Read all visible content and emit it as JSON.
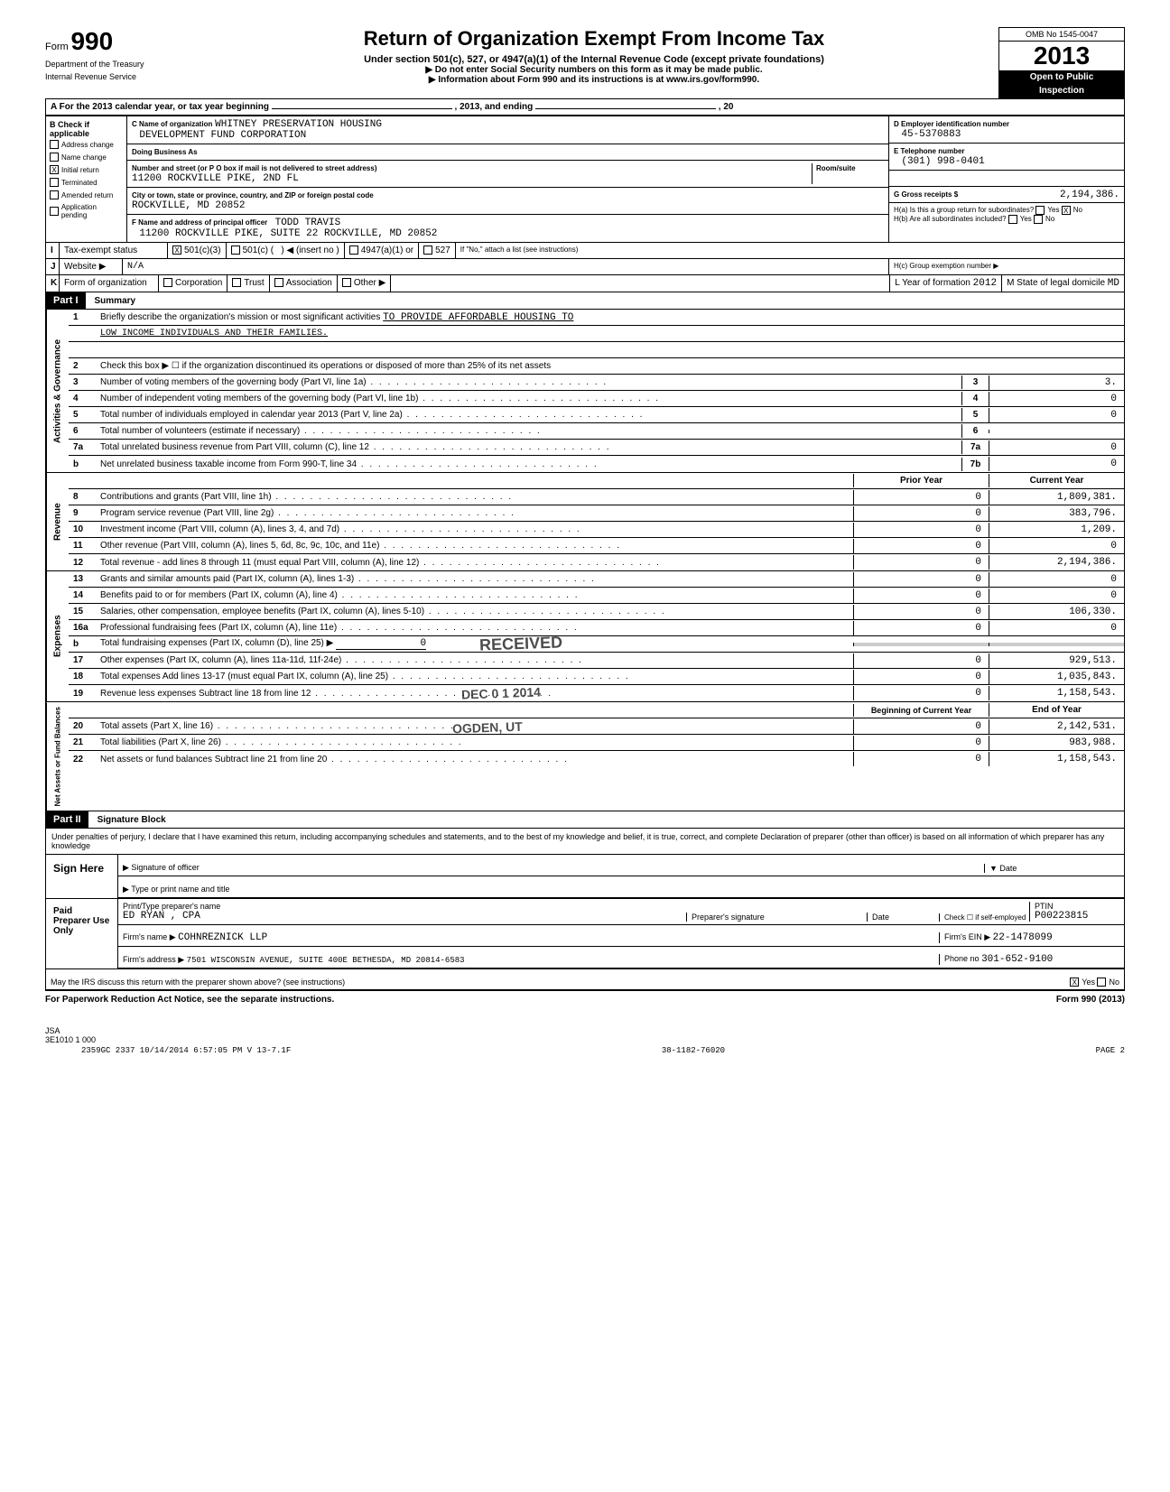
{
  "header": {
    "form_label": "Form",
    "form_number": "990",
    "dept": "Department of the Treasury",
    "irs": "Internal Revenue Service",
    "title": "Return of Organization Exempt From Income Tax",
    "subtitle": "Under section 501(c), 527, or 4947(a)(1) of the Internal Revenue Code (except private foundations)",
    "note1": "▶ Do not enter Social Security numbers on this form as it may be made public.",
    "note2": "▶ Information about Form 990 and its instructions is at www.irs.gov/form990.",
    "omb": "OMB No 1545-0047",
    "year_prefix": "20",
    "year": "13",
    "open": "Open to Public",
    "inspection": "Inspection"
  },
  "row_a": {
    "text_pre": "A For the 2013 calendar year, or tax year beginning",
    "text_mid": ", 2013, and ending",
    "text_end": ", 20"
  },
  "section_b": {
    "label": "B Check if applicable",
    "opts": [
      "Address change",
      "Name change",
      "Initial return",
      "Terminated",
      "Amended return",
      "Application pending"
    ],
    "checked": [
      false,
      false,
      true,
      false,
      false,
      false
    ]
  },
  "section_c": {
    "name_label": "C Name of organization",
    "name1": "WHITNEY PRESERVATION HOUSING",
    "name2": "DEVELOPMENT FUND CORPORATION",
    "dba_label": "Doing Business As",
    "addr_label": "Number and street (or P O box if mail is not delivered to street address)",
    "room_label": "Room/suite",
    "addr": "11200 ROCKVILLE PIKE, 2ND FL",
    "city_label": "City or town, state or province, country, and ZIP or foreign postal code",
    "city": "ROCKVILLE, MD 20852",
    "f_label": "F Name and address of principal officer",
    "f_name": "TODD TRAVIS",
    "f_addr": "11200 ROCKVILLE PIKE, SUITE 22 ROCKVILLE, MD 20852"
  },
  "section_d": {
    "label": "D  Employer identification number",
    "ein": "45-5370883"
  },
  "section_e": {
    "label": "E  Telephone number",
    "phone": "(301) 998-0401"
  },
  "section_g": {
    "label": "G  Gross receipts $",
    "amount": "2,194,386."
  },
  "section_h": {
    "ha_label": "H(a) Is this a group return for subordinates?",
    "hb_label": "H(b) Are all subordinates included?",
    "hc_label": "H(c) Group exemption number ▶",
    "yes": "Yes",
    "no": "No",
    "note": "If \"No,\" attach a list (see instructions)"
  },
  "row_i": {
    "label": "I",
    "text": "Tax-exempt status",
    "opts": [
      "501(c)(3)",
      "501(c) (",
      "(insert no )",
      "4947(a)(1) or",
      "527"
    ],
    "checked_501c3": "X"
  },
  "row_j": {
    "label": "J",
    "text": "Website ▶",
    "val": "N/A"
  },
  "row_k": {
    "label": "K",
    "text": "Form of organization",
    "opts": [
      "Corporation",
      "Trust",
      "Association",
      "Other ▶"
    ],
    "l_label": "L Year of formation",
    "l_val": "2012",
    "m_label": "M State of legal domicile",
    "m_val": "MD"
  },
  "part1": {
    "label": "Part I",
    "title": "Summary"
  },
  "summary": {
    "side_labels": [
      "Activities & Governance",
      "Revenue",
      "Expenses",
      "Net Assets or Fund Balances"
    ],
    "line1_text": "Briefly describe the organization's mission or most significant activities",
    "line1_val": "TO PROVIDE AFFORDABLE HOUSING TO",
    "line1_val2": "LOW INCOME INDIVIDUALS AND THEIR FAMILIES.",
    "line2_text": "Check this box ▶ ☐ if the organization discontinued its operations or disposed of more than 25% of its net assets",
    "rows_gov": [
      {
        "n": "3",
        "text": "Number of voting members of the governing body (Part VI, line 1a)",
        "box": "3",
        "val": "3."
      },
      {
        "n": "4",
        "text": "Number of independent voting members of the governing body (Part VI, line 1b)",
        "box": "4",
        "val": "0"
      },
      {
        "n": "5",
        "text": "Total number of individuals employed in calendar year 2013 (Part V, line 2a)",
        "box": "5",
        "val": "0"
      },
      {
        "n": "6",
        "text": "Total number of volunteers (estimate if necessary)",
        "box": "6",
        "val": ""
      },
      {
        "n": "7a",
        "text": "Total unrelated business revenue from Part VIII, column (C), line 12",
        "box": "7a",
        "val": "0"
      },
      {
        "n": "b",
        "text": "Net unrelated business taxable income from Form 990-T, line 34",
        "box": "7b",
        "val": "0"
      }
    ],
    "header_prior": "Prior Year",
    "header_current": "Current Year",
    "rows_rev": [
      {
        "n": "8",
        "text": "Contributions and grants (Part VIII, line 1h)",
        "prior": "0",
        "current": "1,809,381."
      },
      {
        "n": "9",
        "text": "Program service revenue (Part VIII, line 2g)",
        "prior": "0",
        "current": "383,796."
      },
      {
        "n": "10",
        "text": "Investment income (Part VIII, column (A), lines 3, 4, and 7d)",
        "prior": "0",
        "current": "1,209."
      },
      {
        "n": "11",
        "text": "Other revenue (Part VIII, column (A), lines 5, 6d, 8c, 9c, 10c, and 11e)",
        "prior": "0",
        "current": "0"
      },
      {
        "n": "12",
        "text": "Total revenue - add lines 8 through 11 (must equal Part VIII, column (A), line 12)",
        "prior": "0",
        "current": "2,194,386."
      }
    ],
    "rows_exp": [
      {
        "n": "13",
        "text": "Grants and similar amounts paid (Part IX, column (A), lines 1-3)",
        "prior": "0",
        "current": "0"
      },
      {
        "n": "14",
        "text": "Benefits paid to or for members (Part IX, column (A), line 4)",
        "prior": "0",
        "current": "0"
      },
      {
        "n": "15",
        "text": "Salaries, other compensation, employee benefits (Part IX, column (A), lines 5-10)",
        "prior": "0",
        "current": "106,330."
      },
      {
        "n": "16a",
        "text": "Professional fundraising fees (Part IX, column (A), line 11e)",
        "prior": "0",
        "current": "0"
      },
      {
        "n": "b",
        "text": "Total fundraising expenses (Part IX, column (D), line 25) ▶",
        "prior": "",
        "current": "",
        "val0": "0"
      },
      {
        "n": "17",
        "text": "Other expenses (Part IX, column (A), lines 11a-11d, 11f-24e)",
        "prior": "0",
        "current": "929,513."
      },
      {
        "n": "18",
        "text": "Total expenses  Add lines 13-17 (must equal Part IX, column (A), line 25)",
        "prior": "0",
        "current": "1,035,843."
      },
      {
        "n": "19",
        "text": "Revenue less expenses  Subtract line 18 from line 12",
        "prior": "0",
        "current": "1,158,543."
      }
    ],
    "header_begin": "Beginning of Current Year",
    "header_end": "End of Year",
    "rows_net": [
      {
        "n": "20",
        "text": "Total assets (Part X, line 16)",
        "prior": "0",
        "current": "2,142,531."
      },
      {
        "n": "21",
        "text": "Total liabilities (Part X, line 26)",
        "prior": "0",
        "current": "983,988."
      },
      {
        "n": "22",
        "text": "Net assets or fund balances  Subtract line 21 from line 20",
        "prior": "0",
        "current": "1,158,543."
      }
    ]
  },
  "stamps": {
    "received": "RECEIVED",
    "date": "DEC 0 1 2014",
    "ogden": "OGDEN, UT"
  },
  "part2": {
    "label": "Part II",
    "title": "Signature Block"
  },
  "sig": {
    "perjury": "Under penalties of perjury, I declare that I have examined this return, including accompanying schedules and statements, and to the best of my knowledge and belief, it is true, correct, and complete  Declaration of preparer (other than officer) is based on all information of which preparer has any knowledge",
    "sign_here": "Sign Here",
    "sig_officer": "Signature of officer",
    "date_label": "Date",
    "type_name": "Type or print name and title",
    "paid_prep": "Paid Preparer Use Only",
    "print_name_label": "Print/Type preparer's name",
    "prep_sig_label": "Preparer's signature",
    "prep_name": "ED  RYAN , CPA",
    "check_self": "Check ☐ if self-employed",
    "ptin_label": "PTIN",
    "ptin": "P00223815",
    "firm_name_label": "Firm's name ▶",
    "firm_name": "COHNREZNICK LLP",
    "firm_ein_label": "Firm's EIN ▶",
    "firm_ein": "22-1478099",
    "firm_addr_label": "Firm's address ▶",
    "firm_addr": "7501 WISCONSIN AVENUE, SUITE 400E BETHESDA, MD 20814-6583",
    "phone_label": "Phone no",
    "phone": "301-652-9100",
    "irs_discuss": "May the IRS discuss this return with the preparer shown above? (see instructions)",
    "yes": "Yes",
    "no": "No",
    "yes_x": "X"
  },
  "footer": {
    "paperwork": "For Paperwork Reduction Act Notice, see the separate instructions.",
    "form": "Form 990 (2013)",
    "jsa": "JSA",
    "code": "3E1010 1 000",
    "bottom": "2359GC 2337  10/14/2014  6:57:05 PM   V 13-7.1F",
    "id": "38-1182-76020",
    "page": "PAGE 2"
  }
}
